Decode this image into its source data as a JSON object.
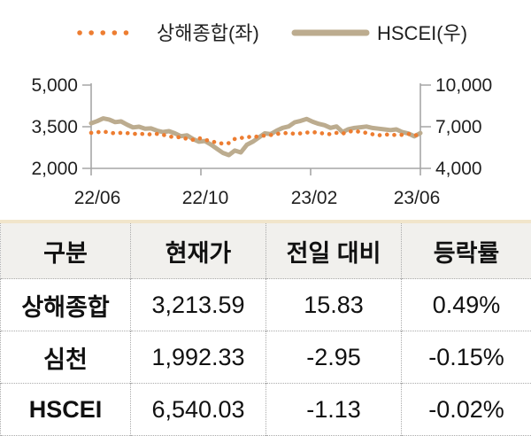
{
  "colors": {
    "sse_orange": "#ED7D31",
    "hscei_tan": "#BCAC8F",
    "axis_gray": "#A6A6A6",
    "table_top_border": "#F1E5CB",
    "header_bg": "#F1F0ED"
  },
  "chart_data": {
    "type": "line",
    "title": "",
    "xlabel": "",
    "ylabel_left": "",
    "ylabel_right": "",
    "grid": false,
    "legend_position": "top",
    "x_ticks": [
      "22/06",
      "22/10",
      "23/02",
      "23/06"
    ],
    "left_axis": {
      "min": 2000,
      "max": 5000,
      "ticks": [
        "5,000",
        "3,500",
        "2,000"
      ]
    },
    "right_axis": {
      "min": 4000,
      "max": 10000,
      "ticks": [
        "10,000",
        "7,000",
        "4,000"
      ]
    },
    "series": [
      {
        "name": "상해종합",
        "label": "상해종합(좌)",
        "axis": "left",
        "style": "dotted",
        "color": "#ED7D31",
        "values": [
          3280,
          3300,
          3330,
          3290,
          3260,
          3280,
          3270,
          3250,
          3230,
          3250,
          3220,
          3240,
          3210,
          3160,
          3110,
          3130,
          3060,
          3030,
          3090,
          3030,
          2980,
          2930,
          2890,
          2910,
          3060,
          3090,
          3140,
          3120,
          3160,
          3180,
          3200,
          3240,
          3260,
          3280,
          3240,
          3260,
          3290,
          3310,
          3280,
          3250,
          3230,
          3280,
          3250,
          3320,
          3350,
          3310,
          3280,
          3230,
          3190,
          3210,
          3230,
          3190,
          3210,
          3240,
          3190,
          3214
        ]
      },
      {
        "name": "HSCEI",
        "label": "HSCEI(우)",
        "axis": "right",
        "style": "solid",
        "color": "#BCAC8F",
        "values": [
          7250,
          7400,
          7600,
          7520,
          7330,
          7380,
          7150,
          6950,
          7000,
          6850,
          6880,
          6720,
          6620,
          6680,
          6520,
          6320,
          6380,
          6120,
          5920,
          5970,
          5720,
          5420,
          5120,
          4960,
          5280,
          5150,
          5700,
          5920,
          6220,
          6520,
          6470,
          6720,
          6920,
          7020,
          7320,
          7420,
          7560,
          7360,
          7210,
          7110,
          6920,
          7020,
          6620,
          6820,
          6920,
          6960,
          7010,
          6910,
          6860,
          6810,
          6760,
          6810,
          6610,
          6510,
          6310,
          6540
        ]
      }
    ]
  },
  "table": {
    "headers": [
      "구분",
      "현재가",
      "전일 대비",
      "등락률"
    ],
    "rows": [
      {
        "name": "상해종합",
        "price": "3,213.59",
        "change": "15.83",
        "pct": "0.49%"
      },
      {
        "name": "심천",
        "price": "1,992.33",
        "change": "-2.95",
        "pct": "-0.15%"
      },
      {
        "name": "HSCEI",
        "price": "6,540.03",
        "change": "-1.13",
        "pct": "-0.02%"
      }
    ]
  }
}
